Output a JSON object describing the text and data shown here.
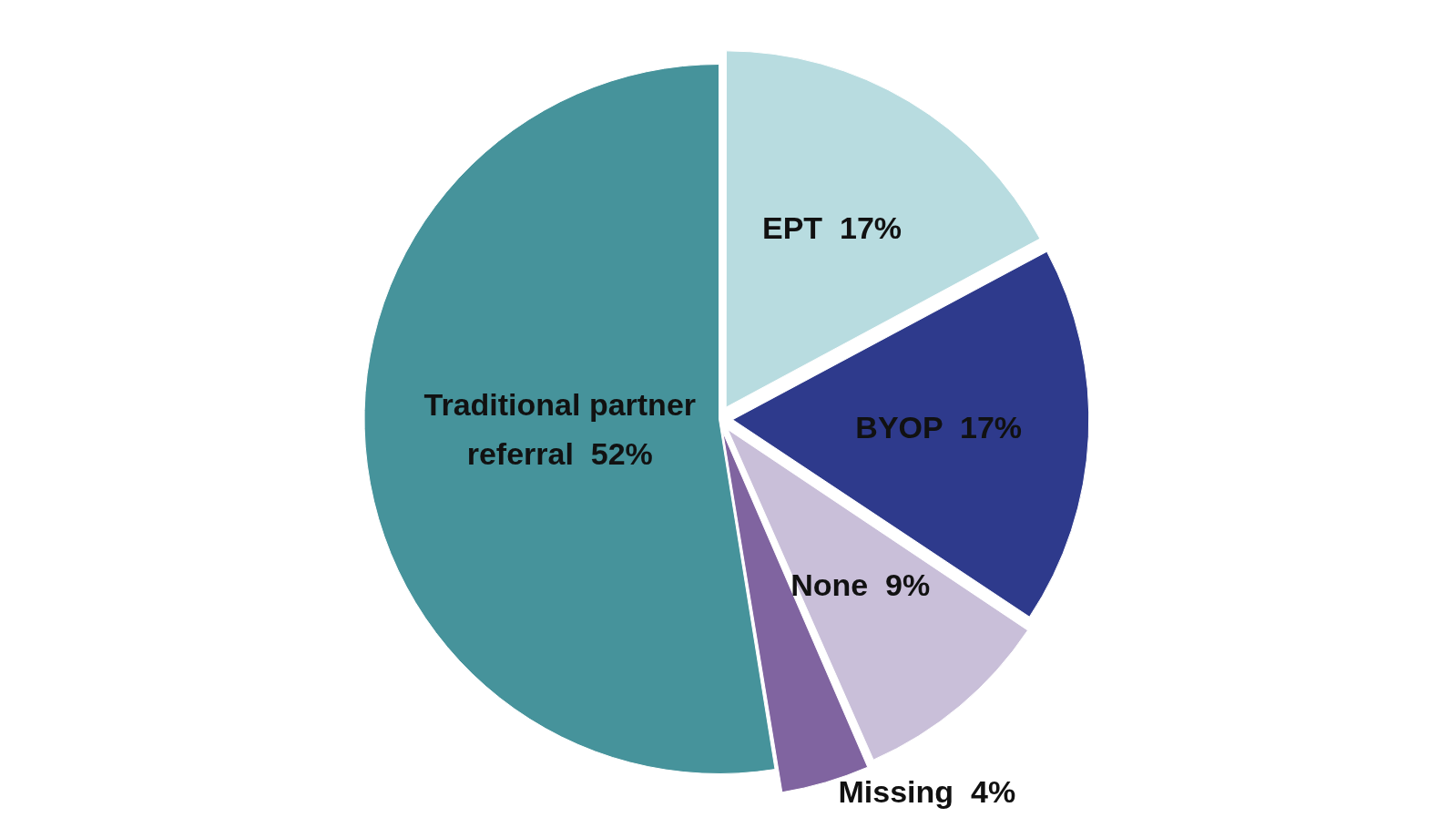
{
  "chart_data": {
    "type": "pie",
    "categories": [
      "EPT",
      "BYOP",
      "None",
      "Missing",
      "Traditional partner referral"
    ],
    "values": [
      17,
      17,
      9,
      4,
      52
    ],
    "value_labels": [
      "17%",
      "17%",
      "9%",
      "4%",
      "52%"
    ],
    "colors": [
      "#b8dce0",
      "#2e3a8c",
      "#c9bfd9",
      "#8064a0",
      "#46939b"
    ],
    "legend": false
  }
}
